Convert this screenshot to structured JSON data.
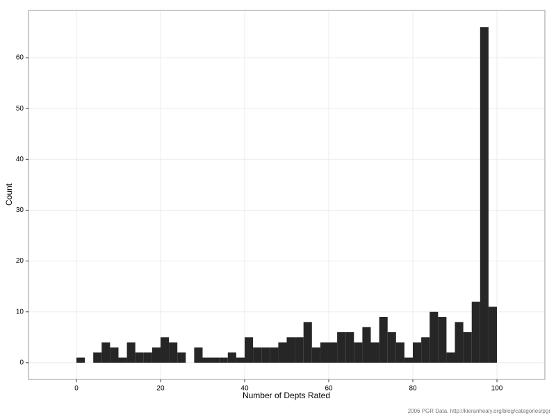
{
  "chart_data": {
    "type": "histogram",
    "xlabel": "Number of Depts Rated",
    "ylabel": "Count",
    "caption": "2006 PGR Data. http://kieranhealy.org/blog/categories/pgr",
    "bins": [
      0,
      2,
      4,
      6,
      8,
      10,
      12,
      14,
      16,
      18,
      20,
      22,
      24,
      26,
      28,
      30,
      32,
      34,
      36,
      38,
      40,
      42,
      44,
      46,
      48,
      50,
      52,
      54,
      56,
      58,
      60,
      62,
      64,
      66,
      68,
      70,
      72,
      74,
      76,
      78,
      80,
      82,
      84,
      86,
      88,
      90,
      92,
      94,
      96,
      98,
      100
    ],
    "values": [
      1,
      0,
      2,
      4,
      3,
      1,
      4,
      2,
      2,
      3,
      5,
      4,
      2,
      0,
      3,
      1,
      1,
      1,
      2,
      1,
      5,
      3,
      3,
      3,
      4,
      5,
      5,
      8,
      3,
      4,
      4,
      6,
      6,
      4,
      7,
      4,
      9,
      6,
      4,
      1,
      4,
      5,
      10,
      9,
      2,
      8,
      6,
      12,
      66,
      11
    ],
    "color": "#262626",
    "xlim": [
      -11.4,
      111.4
    ],
    "xticks": [
      0,
      20,
      40,
      60,
      80,
      100
    ],
    "ylim": [
      -3.3,
      69.3
    ],
    "yticks": [
      0,
      10,
      20,
      30,
      40,
      50,
      60
    ],
    "grid": true
  }
}
